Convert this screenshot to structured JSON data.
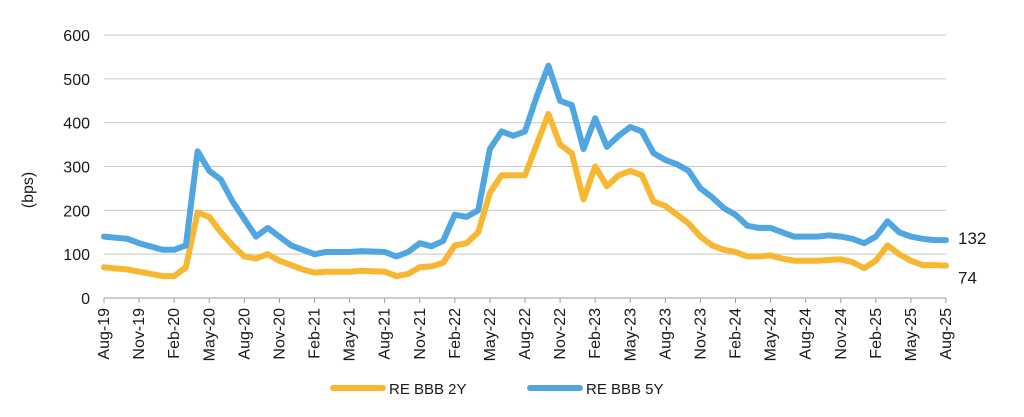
{
  "chart_data": {
    "type": "line",
    "ylabel": "(bps)",
    "ylim": [
      0,
      600
    ],
    "yticks": [
      0,
      100,
      200,
      300,
      400,
      500,
      600
    ],
    "grid": "horizontal",
    "legend_position": "bottom",
    "x_tick_labels": [
      "Aug-19",
      "Nov-19",
      "Feb-20",
      "May-20",
      "Aug-20",
      "Nov-20",
      "Feb-21",
      "May-21",
      "Aug-21",
      "Nov-21",
      "Feb-22",
      "May-22",
      "Aug-22",
      "Nov-22",
      "Feb-23",
      "May-23",
      "Aug-23",
      "Nov-23",
      "Feb-24",
      "May-24",
      "Aug-24",
      "Nov-24",
      "Feb-25",
      "May-25",
      "Aug-25"
    ],
    "x": [
      "2019-08",
      "2019-10",
      "2019-11",
      "2020-01",
      "2020-02",
      "2020-03",
      "2020-04",
      "2020-05",
      "2020-06",
      "2020-07",
      "2020-08",
      "2020-09",
      "2020-10",
      "2020-11",
      "2020-12",
      "2021-01",
      "2021-02",
      "2021-03",
      "2021-05",
      "2021-06",
      "2021-08",
      "2021-09",
      "2021-10",
      "2021-11",
      "2021-12",
      "2022-01",
      "2022-02",
      "2022-03",
      "2022-04",
      "2022-05",
      "2022-06",
      "2022-07",
      "2022-08",
      "2022-09",
      "2022-10",
      "2022-11",
      "2022-12",
      "2023-01",
      "2023-02",
      "2023-03",
      "2023-04",
      "2023-05",
      "2023-06",
      "2023-07",
      "2023-08",
      "2023-09",
      "2023-10",
      "2023-11",
      "2023-12",
      "2024-01",
      "2024-02",
      "2024-03",
      "2024-04",
      "2024-05",
      "2024-06",
      "2024-07",
      "2024-08",
      "2024-09",
      "2024-10",
      "2024-11",
      "2024-12",
      "2025-01",
      "2025-02",
      "2025-03",
      "2025-04",
      "2025-05",
      "2025-06",
      "2025-07",
      "2025-08"
    ],
    "series": [
      {
        "name": "RE BBB 2Y",
        "color": "#f7b731",
        "values": [
          70,
          65,
          60,
          50,
          50,
          70,
          195,
          185,
          150,
          120,
          95,
          90,
          100,
          85,
          75,
          65,
          58,
          60,
          60,
          62,
          60,
          50,
          55,
          70,
          72,
          80,
          120,
          125,
          150,
          240,
          280,
          280,
          280,
          350,
          420,
          350,
          330,
          225,
          300,
          255,
          280,
          290,
          280,
          220,
          210,
          190,
          170,
          140,
          120,
          110,
          105,
          95,
          95,
          97,
          90,
          85,
          85,
          85,
          87,
          88,
          82,
          68,
          85,
          120,
          100,
          85,
          75,
          75,
          74
        ],
        "end_label": "74"
      },
      {
        "name": "RE BBB 5Y",
        "color": "#4fa6e0",
        "values": [
          140,
          135,
          125,
          110,
          110,
          120,
          335,
          290,
          270,
          220,
          180,
          140,
          160,
          140,
          120,
          110,
          100,
          105,
          105,
          107,
          105,
          95,
          105,
          125,
          118,
          130,
          190,
          185,
          200,
          340,
          380,
          370,
          380,
          460,
          530,
          450,
          440,
          340,
          410,
          345,
          370,
          390,
          380,
          330,
          315,
          305,
          290,
          250,
          230,
          205,
          190,
          165,
          160,
          160,
          150,
          140,
          140,
          140,
          143,
          140,
          135,
          125,
          140,
          175,
          150,
          140,
          135,
          132,
          132
        ],
        "end_label": "132"
      }
    ]
  }
}
